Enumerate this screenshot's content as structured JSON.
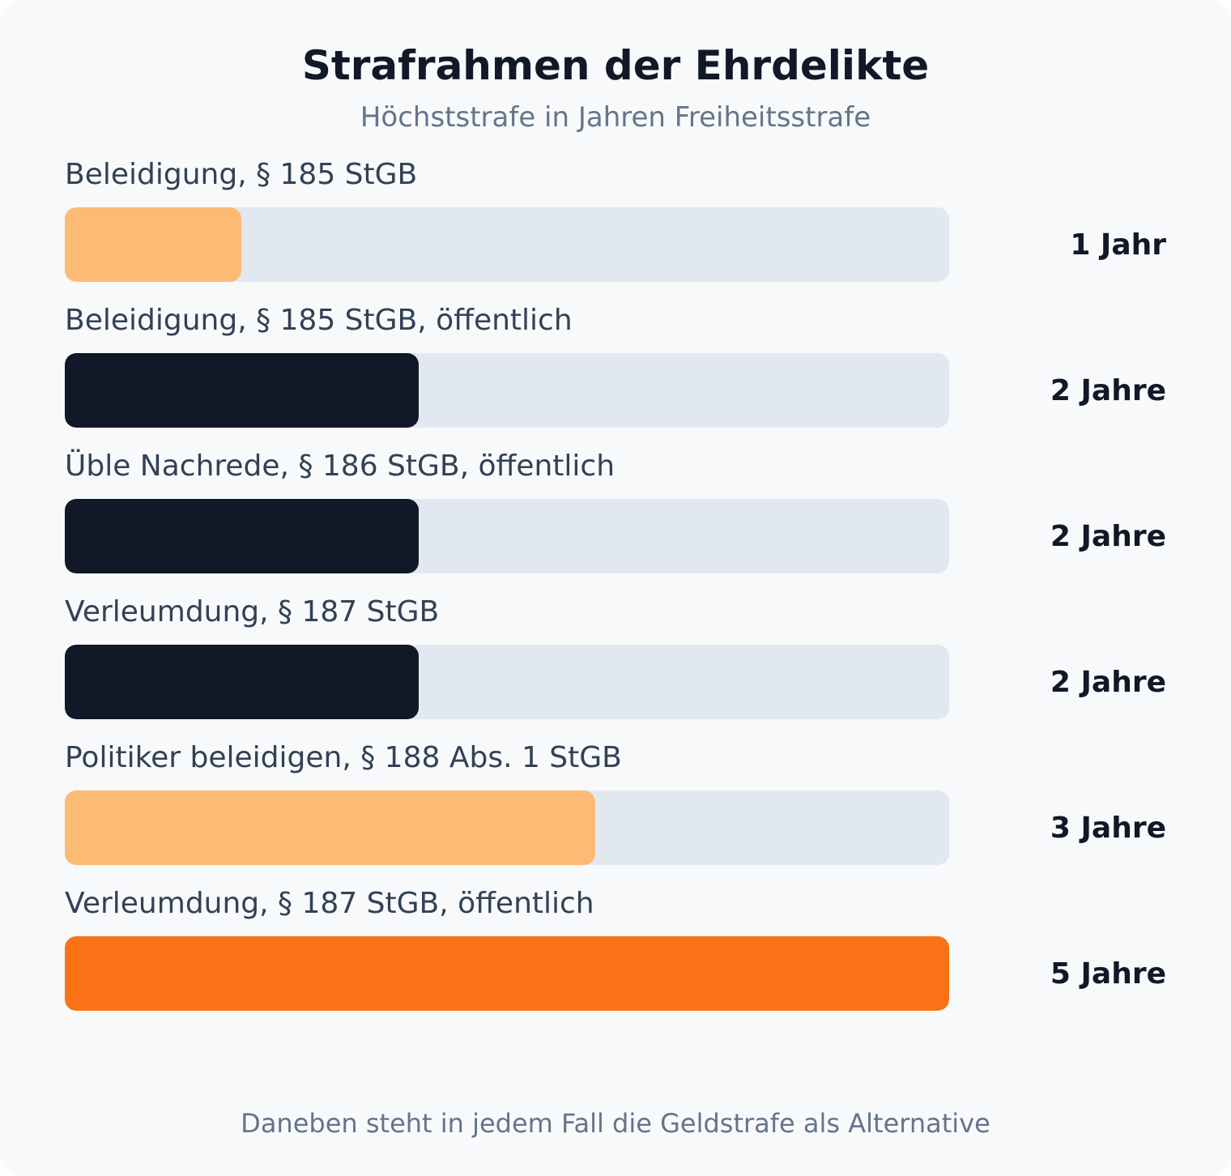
{
  "chart_data": {
    "type": "bar",
    "orientation": "horizontal",
    "title": "Strafrahmen der Ehrdelikte",
    "subtitle": "Höchststrafe in Jahren Freiheitsstrafe",
    "categories": [
      "Beleidigung, § 185 StGB",
      "Beleidigung, § 185 StGB, öffentlich",
      "Üble Nachrede, § 186 StGB, öffentlich",
      "Verleumdung, § 187 StGB",
      "Politiker beleidigen, § 188 Abs. 1 StGB",
      "Verleumdung, § 187 StGB, öffentlich"
    ],
    "values": [
      1,
      2,
      2,
      2,
      3,
      5
    ],
    "value_labels": [
      "1 Jahr",
      "2 Jahre",
      "2 Jahre",
      "2 Jahre",
      "3 Jahre",
      "5 Jahre"
    ],
    "bar_colors": [
      "#fdba74",
      "#111827",
      "#111827",
      "#111827",
      "#fdba74",
      "#f97316"
    ],
    "xlim": [
      0,
      5
    ],
    "footnote": "Daneben steht in jedem Fall die Geldstrafe als Alternative"
  },
  "colors": {
    "background": "#f7f9fb",
    "track": "#e2e8f0",
    "title": "#111827",
    "muted": "#64748b"
  }
}
